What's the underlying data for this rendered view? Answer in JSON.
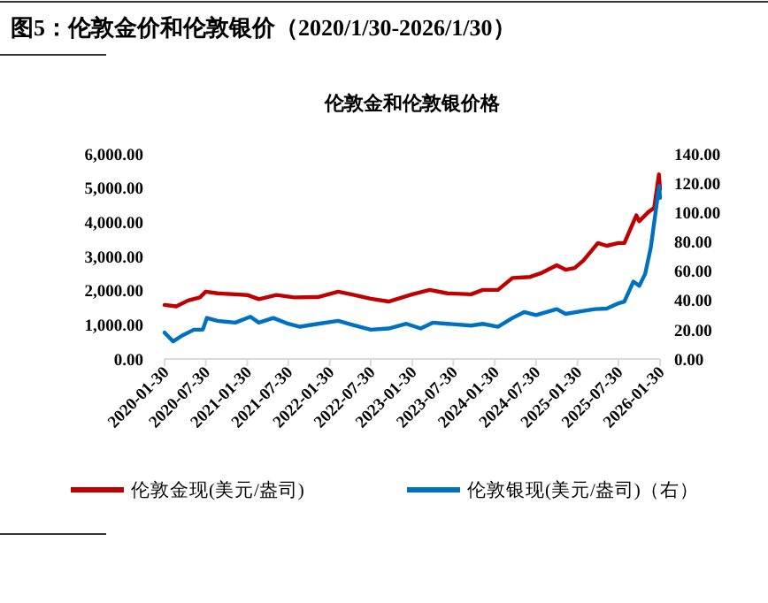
{
  "chart_data": {
    "type": "line",
    "title": "图5：伦敦金价和伦敦银价（2020/1/30-2026/1/30）",
    "subtitle": "伦敦金和伦敦银价格",
    "xlim": [
      "2020-01-30",
      "2026-01-30"
    ],
    "xticks": [
      "2020-01-30",
      "2020-07-30",
      "2021-01-30",
      "2021-07-30",
      "2022-01-30",
      "2022-07-30",
      "2023-01-30",
      "2023-07-30",
      "2024-01-30",
      "2024-07-30",
      "2025-01-30",
      "2025-07-30",
      "2026-01-30"
    ],
    "ylim": [
      0,
      6000
    ],
    "yticks": [
      {
        "value": 0,
        "label": "0.00"
      },
      {
        "value": 1000,
        "label": "1,000.00"
      },
      {
        "value": 2000,
        "label": "2,000.00"
      },
      {
        "value": 3000,
        "label": "3,000.00"
      },
      {
        "value": 4000,
        "label": "4,000.00"
      },
      {
        "value": 5000,
        "label": "5,000.00"
      },
      {
        "value": 6000,
        "label": "6,000.00"
      }
    ],
    "y2lim": [
      0,
      140
    ],
    "y2ticks": [
      {
        "value": 0,
        "label": "0.00"
      },
      {
        "value": 20,
        "label": "20.00"
      },
      {
        "value": 40,
        "label": "40.00"
      },
      {
        "value": 60,
        "label": "60.00"
      },
      {
        "value": 80,
        "label": "80.00"
      },
      {
        "value": 100,
        "label": "100.00"
      },
      {
        "value": 120,
        "label": "120.00"
      },
      {
        "value": 140,
        "label": "140.00"
      }
    ],
    "grid": false,
    "legend": "bottom",
    "marker": "none",
    "line_style": "solid",
    "series": [
      {
        "name": "伦敦金现(美元/盎司)",
        "color": "#c00000",
        "x": [
          "2020-01-30",
          "2020-03-22",
          "2020-05-13",
          "2020-07-04",
          "2020-07-30",
          "2020-09-20",
          "2020-12-08",
          "2021-01-30",
          "2021-03-22",
          "2021-06-08",
          "2021-08-25",
          "2021-12-08",
          "2022-03-08",
          "2022-05-13",
          "2022-07-30",
          "2022-10-17",
          "2023-01-30",
          "2023-04-17",
          "2023-07-04",
          "2023-10-17",
          "2023-12-08",
          "2024-02-13",
          "2024-04-17",
          "2024-07-04",
          "2024-08-25",
          "2024-10-30",
          "2024-12-08",
          "2025-01-17",
          "2025-02-25",
          "2025-04-30",
          "2025-06-08",
          "2025-07-30",
          "2025-08-25",
          "2025-10-17",
          "2025-10-30",
          "2025-12-08",
          "2026-01-04",
          "2026-01-25",
          "2026-01-30"
        ],
        "values": [
          1580,
          1540,
          1710,
          1800,
          1970,
          1920,
          1890,
          1870,
          1750,
          1870,
          1800,
          1810,
          1970,
          1880,
          1760,
          1680,
          1890,
          2020,
          1920,
          1890,
          2020,
          2020,
          2370,
          2400,
          2520,
          2740,
          2610,
          2660,
          2880,
          3390,
          3310,
          3390,
          3390,
          4200,
          4030,
          4290,
          4420,
          5400,
          4970
        ]
      },
      {
        "name": "伦敦银现(美元/盎司)（右）",
        "color": "#0070c0",
        "axis": "y2",
        "x": [
          "2020-01-30",
          "2020-03-08",
          "2020-04-17",
          "2020-06-08",
          "2020-07-17",
          "2020-08-04",
          "2020-09-20",
          "2020-12-08",
          "2021-02-13",
          "2021-03-22",
          "2021-05-25",
          "2021-07-30",
          "2021-09-20",
          "2021-12-08",
          "2022-03-08",
          "2022-05-13",
          "2022-07-30",
          "2022-10-17",
          "2023-01-04",
          "2023-03-08",
          "2023-04-30",
          "2023-07-04",
          "2023-10-17",
          "2023-12-08",
          "2024-02-13",
          "2024-04-17",
          "2024-06-08",
          "2024-07-30",
          "2024-10-30",
          "2024-12-08",
          "2025-02-25",
          "2025-04-17",
          "2025-06-08",
          "2025-07-30",
          "2025-08-25",
          "2025-10-04",
          "2025-10-30",
          "2025-11-25",
          "2025-12-20",
          "2026-01-17",
          "2026-01-26",
          "2026-01-30"
        ],
        "values": [
          18,
          12,
          16,
          20,
          20,
          28,
          26,
          24.8,
          28.8,
          24.8,
          28,
          24,
          22,
          24,
          26,
          23.2,
          20,
          20.8,
          24,
          20.8,
          24.8,
          24,
          22.8,
          24,
          22,
          28,
          32,
          30,
          34,
          30.8,
          32.8,
          34,
          34.4,
          38,
          39.2,
          52.8,
          50,
          58,
          76,
          108,
          118,
          110
        ]
      }
    ]
  }
}
